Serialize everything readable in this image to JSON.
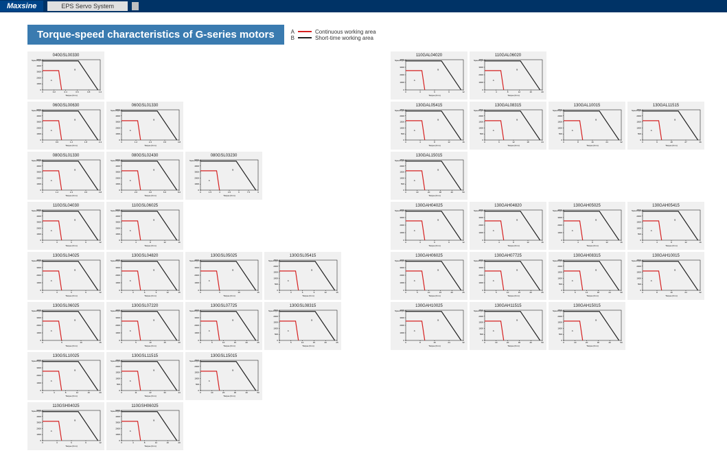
{
  "header": {
    "brand": "Maxsine",
    "system": "EPS Servo System"
  },
  "title": "Torque-speed characteristics of G-series motors",
  "legend": {
    "a": {
      "label": "Continuous working area",
      "letter": "A",
      "color": "#d62020"
    },
    "b": {
      "label": "Short-time working area",
      "letter": "B",
      "color": "#222222"
    }
  },
  "chart_style": {
    "card_bg": "#f0f0f0",
    "axis_color": "#000000",
    "ylabel": "Speed (rpm)",
    "xlabel": "Torque (N.m)",
    "title_fontsize": 6,
    "tick_fontsize": 3
  },
  "left_rows": [
    [
      {
        "id": "040GSL00330",
        "xticks": [
          "0",
          "0.2",
          "0.4",
          "0.6",
          "0.8",
          "1.0"
        ],
        "yticks": [
          "0",
          "1000",
          "2000",
          "3000",
          "4000",
          "5000"
        ]
      }
    ],
    [
      {
        "id": "060GSL00630",
        "xticks": [
          "0",
          "0.6",
          "1.2",
          "1.8",
          "2.4"
        ],
        "yticks": [
          "0",
          "1000",
          "2000",
          "3000",
          "4000",
          "5000"
        ]
      },
      {
        "id": "060GSL01330",
        "xticks": [
          "0",
          "1.2",
          "2.4",
          "3.6",
          "4.8"
        ],
        "yticks": [
          "0",
          "1000",
          "2000",
          "3000",
          "4000",
          "5000"
        ]
      }
    ],
    [
      {
        "id": "080GSL01330",
        "xticks": [
          "0",
          "1.2",
          "2.4",
          "3.6",
          "4.8"
        ],
        "yticks": [
          "0",
          "1000",
          "2000",
          "3000",
          "4000",
          "5000"
        ]
      },
      {
        "id": "080GSL02430",
        "xticks": [
          "0",
          "2.0",
          "4.0",
          "6.0",
          "8.0"
        ],
        "yticks": [
          "0",
          "1000",
          "2000",
          "3000",
          "4000",
          "5000"
        ]
      },
      {
        "id": "080GSL03230",
        "xticks": [
          "0",
          "1.5",
          "3",
          "4.5",
          "6",
          "7.5",
          "9"
        ],
        "yticks": [
          "0",
          "1000",
          "2000",
          "3000",
          "4000",
          "5000"
        ]
      }
    ],
    [
      {
        "id": "110GSL04030",
        "xticks": [
          "0",
          "3",
          "6",
          "9",
          "12"
        ],
        "yticks": [
          "0",
          "1000",
          "2000",
          "3000",
          "4000",
          "5000"
        ]
      },
      {
        "id": "110GSL06025",
        "xticks": [
          "0",
          "4",
          "8",
          "12",
          "16"
        ],
        "yticks": [
          "0",
          "1000",
          "2000",
          "3000",
          "4000",
          "5000"
        ]
      }
    ],
    [
      {
        "id": "130GSL04025",
        "xticks": [
          "0",
          "3",
          "6",
          "9",
          "12"
        ],
        "yticks": [
          "0",
          "1000",
          "2000",
          "3000",
          "4000"
        ]
      },
      {
        "id": "130GSL04820",
        "xticks": [
          "0",
          "3",
          "6",
          "9",
          "12",
          "15"
        ],
        "yticks": [
          "0",
          "1000",
          "2000",
          "3000",
          "4000"
        ]
      },
      {
        "id": "130GSL05025",
        "xticks": [
          "0",
          "5",
          "10",
          "15"
        ],
        "yticks": [
          "0",
          "1000",
          "2000",
          "3000",
          "4000"
        ]
      },
      {
        "id": "130GSL05415",
        "xticks": [
          "0",
          "3",
          "6",
          "9",
          "12",
          "15"
        ],
        "yticks": [
          "0",
          "500",
          "1000",
          "1500",
          "2000",
          "2500"
        ]
      }
    ],
    [
      {
        "id": "130GSL06025",
        "xticks": [
          "0",
          "5",
          "10",
          "15"
        ],
        "yticks": [
          "0",
          "1000",
          "2000",
          "3000",
          "4000"
        ]
      },
      {
        "id": "130GSL07220",
        "xticks": [
          "0",
          "5",
          "10",
          "15",
          "20"
        ],
        "yticks": [
          "0",
          "1000",
          "2000",
          "3000",
          "4000"
        ]
      },
      {
        "id": "130GSL07725",
        "xticks": [
          "0",
          "5",
          "10",
          "15",
          "20",
          "25"
        ],
        "yticks": [
          "0",
          "1000",
          "2000",
          "3000",
          "4000"
        ]
      },
      {
        "id": "130GSL08315",
        "xticks": [
          "0",
          "5",
          "10",
          "15",
          "20",
          "25"
        ],
        "yticks": [
          "0",
          "500",
          "1000",
          "1500",
          "2000",
          "2500"
        ]
      }
    ],
    [
      {
        "id": "130GSL10025",
        "xticks": [
          "0",
          "4",
          "8",
          "12",
          "16",
          "20"
        ],
        "yticks": [
          "0",
          "1000",
          "2000",
          "3000",
          "4000"
        ]
      },
      {
        "id": "130GSL11515",
        "xticks": [
          "0",
          "11",
          "22",
          "33",
          "44"
        ],
        "yticks": [
          "0",
          "500",
          "1000",
          "1500",
          "2000",
          "2500"
        ]
      },
      {
        "id": "130GSL15015",
        "xticks": [
          "0",
          "10",
          "20",
          "30",
          "40",
          "50"
        ],
        "yticks": [
          "0",
          "500",
          "1000",
          "1500",
          "2000",
          "2500"
        ]
      }
    ],
    [
      {
        "id": "110GSH04025",
        "xticks": [
          "0",
          "3",
          "6",
          "9",
          "12"
        ],
        "yticks": [
          "0",
          "1000",
          "2000",
          "3000",
          "4000",
          "5000"
        ]
      },
      {
        "id": "110GSH06025",
        "xticks": [
          "0",
          "4",
          "8",
          "12",
          "16",
          "20"
        ],
        "yticks": [
          "0",
          "1000",
          "2000",
          "3000",
          "4000",
          "5000"
        ]
      }
    ]
  ],
  "right_rows": [
    [
      {
        "id": "110GAL04020",
        "xticks": [
          "0",
          "3",
          "6",
          "9",
          "12"
        ],
        "yticks": [
          "0",
          "1000",
          "2000",
          "3000",
          "4000"
        ]
      },
      {
        "id": "110GAL06020",
        "xticks": [
          "0",
          "4",
          "8",
          "12",
          "16",
          "20"
        ],
        "yticks": [
          "0",
          "1000",
          "2000",
          "3000",
          "4000"
        ]
      }
    ],
    [
      {
        "id": "130GAL05415",
        "xticks": [
          "0",
          "4",
          "8",
          "12",
          "16"
        ],
        "yticks": [
          "0",
          "500",
          "1000",
          "1500",
          "2000",
          "2500"
        ]
      },
      {
        "id": "130GAL08315",
        "xticks": [
          "0",
          "6",
          "12",
          "18",
          "24"
        ],
        "yticks": [
          "0",
          "500",
          "1000",
          "1500",
          "2000",
          "2500"
        ]
      },
      {
        "id": "130GAL10015",
        "xticks": [
          "0",
          "8",
          "16",
          "24",
          "32"
        ],
        "yticks": [
          "0",
          "500",
          "1000",
          "1500",
          "2000",
          "2500"
        ]
      },
      {
        "id": "130GAL11515",
        "xticks": [
          "0",
          "9",
          "18",
          "27",
          "36"
        ],
        "yticks": [
          "0",
          "500",
          "1000",
          "1500",
          "2000",
          "2500"
        ]
      }
    ],
    [
      {
        "id": "130GAL15015",
        "xticks": [
          "0",
          "10",
          "20",
          "30",
          "40",
          "50"
        ],
        "yticks": [
          "0",
          "500",
          "1000",
          "1500",
          "2000",
          "2500"
        ]
      }
    ],
    [
      {
        "id": "130GAH04025",
        "xticks": [
          "0",
          "3",
          "6",
          "9",
          "12"
        ],
        "yticks": [
          "0",
          "1000",
          "2000",
          "3000",
          "4000"
        ]
      },
      {
        "id": "130GAH04820",
        "xticks": [
          "0",
          "4",
          "8",
          "12",
          "16"
        ],
        "yticks": [
          "0",
          "1000",
          "2000",
          "3000",
          "4000"
        ]
      },
      {
        "id": "130GAH05025",
        "xticks": [
          "0",
          "4",
          "8",
          "12",
          "16"
        ],
        "yticks": [
          "0",
          "1000",
          "2000",
          "3000",
          "4000"
        ]
      },
      {
        "id": "130GAH05415",
        "xticks": [
          "0",
          "4",
          "8",
          "12",
          "16"
        ],
        "yticks": [
          "0",
          "500",
          "1000",
          "1500",
          "2000",
          "2500"
        ]
      }
    ],
    [
      {
        "id": "130GAH06025",
        "xticks": [
          "0",
          "5",
          "10",
          "15",
          "20",
          "25"
        ],
        "yticks": [
          "0",
          "1000",
          "2000",
          "3000",
          "4000"
        ]
      },
      {
        "id": "130GAH07725",
        "xticks": [
          "0",
          "5",
          "10",
          "15",
          "20",
          "25"
        ],
        "yticks": [
          "0",
          "1000",
          "2000",
          "3000",
          "4000"
        ]
      },
      {
        "id": "130GAH08315",
        "xticks": [
          "0",
          "6",
          "12",
          "18",
          "24",
          "30"
        ],
        "yticks": [
          "0",
          "500",
          "1000",
          "1500",
          "2000",
          "2500"
        ]
      },
      {
        "id": "130GAH10015",
        "xticks": [
          "0",
          "8",
          "16",
          "24",
          "32"
        ],
        "yticks": [
          "0",
          "500",
          "1000",
          "1500",
          "2000",
          "2500"
        ]
      }
    ],
    [
      {
        "id": "130GAH10025",
        "xticks": [
          "0",
          "8",
          "16",
          "24",
          "32"
        ],
        "yticks": [
          "0",
          "1000",
          "2000",
          "3000",
          "4000"
        ]
      },
      {
        "id": "130GAH11515",
        "xticks": [
          "0",
          "10",
          "20",
          "30",
          "40",
          "50"
        ],
        "yticks": [
          "0",
          "500",
          "1000",
          "1500",
          "2000",
          "2500"
        ]
      },
      {
        "id": "130GAH15015",
        "xticks": [
          "0",
          "10",
          "20",
          "30",
          "40",
          "50"
        ],
        "yticks": [
          "0",
          "500",
          "1000",
          "1500",
          "2000",
          "2500"
        ]
      }
    ]
  ]
}
